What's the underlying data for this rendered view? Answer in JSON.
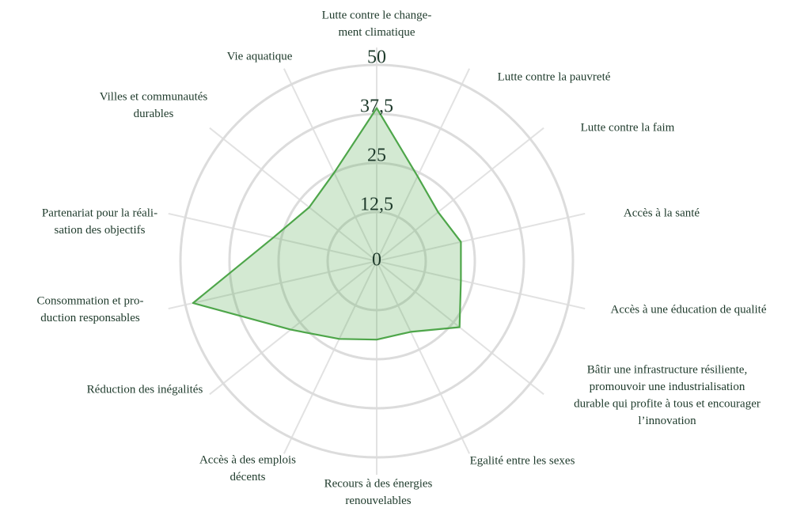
{
  "chart_data": {
    "type": "radar",
    "categories": [
      [
        "Lutte contre le change-",
        "ment climatique"
      ],
      [
        "Lutte contre la pauvreté"
      ],
      [
        "Lutte contre la faim"
      ],
      [
        "Accès à la santé"
      ],
      [
        "Accès à une éducation de qualité"
      ],
      [
        "Bâtir une infrastructure résiliente,",
        "promouvoir une industrialisation",
        "durable qui profite à tous et encourager",
        "l’innovation"
      ],
      [
        "Egalité entre les sexes"
      ],
      [
        "Recours à des énergies",
        "renouvelables"
      ],
      [
        "Accès à des emplois",
        "décents"
      ],
      [
        "Réduction des inégalités"
      ],
      [
        "Consommation et pro-",
        "duction responsables"
      ],
      [
        "Partenariat pour la réali-",
        "sation des objectifs"
      ],
      [
        "Villes et communautés",
        "durables"
      ],
      [
        "Vie aquatique"
      ]
    ],
    "values": [
      39,
      24,
      20,
      22,
      22,
      27,
      20,
      20,
      22,
      28,
      48,
      27,
      22,
      25
    ],
    "color": "#4ea64a",
    "rlim": [
      0,
      50
    ],
    "rticks": [
      0,
      {
        "value": 12.5,
        "label": "12,5"
      },
      25,
      {
        "value": 37.5,
        "label": "37,5"
      },
      50
    ],
    "grid": true
  }
}
